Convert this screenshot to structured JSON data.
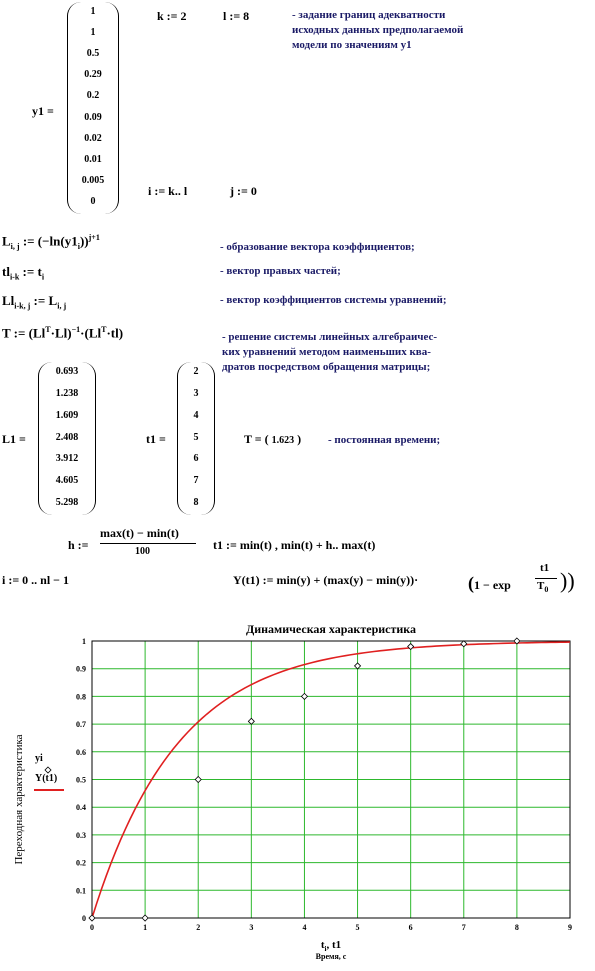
{
  "y1": {
    "label": "y1 =",
    "values": [
      "1",
      "1",
      "0.5",
      "0.29",
      "0.2",
      "0.09",
      "0.02",
      "0.01",
      "0.005",
      "0"
    ]
  },
  "params": {
    "k": "k := 2",
    "l": "l := 8",
    "i": "i := k.. l",
    "j": "j := 0"
  },
  "notes": {
    "bounds": [
      "- задание границ адекватности",
      "исходных данных предполагаемой",
      "модели по значениям y1"
    ],
    "vec_coef": "- образование вектора коэффициентов;",
    "rhs": "- вектор правых частей;",
    "sys_coef": "- вектор коэффициентов системы уравнений;",
    "solve": [
      "- решение системы линейных алгебраичес-",
      "ких уравнений методом наименьших ква-",
      "дратов посредством обращения матрицы;"
    ],
    "const": "- постоянная времени;"
  },
  "formulas": {
    "L": "L",
    "L_rhs": ":= (−ln(y1",
    "tl": "tl",
    "tl_rhs": ":= t",
    "Ll": "Ll",
    "Ll_rhs": ":= L",
    "T": "T := (Ll",
    "h": "h :=",
    "h_num": "max(t) − min(t)",
    "h_den": "100",
    "t1range": "t1 := min(t) , min(t) + h.. max(t)",
    "irange": "i := 0 .. nl − 1",
    "Y": "Y(t1) := min(y) + (max(y) − min(y))·",
    "Y_tail": "1 − exp",
    "Y_frac_num": "t1",
    "Y_frac_den": "T"
  },
  "L1": {
    "label": "L1 =",
    "values": [
      "0.693",
      "1.238",
      "1.609",
      "2.408",
      "3.912",
      "4.605",
      "5.298"
    ]
  },
  "t1vec": {
    "label": "t1 =",
    "values": [
      "2",
      "3",
      "4",
      "5",
      "6",
      "7",
      "8"
    ]
  },
  "Tresult": {
    "label": "T =",
    "value": "1.623"
  },
  "chart_data": {
    "type": "line",
    "title": "Динамическая характеристика",
    "xlabel_sym": "t",
    "xlabel_sym2": "t1",
    "xlabel": "Время, с",
    "ylabel": "Переходная характеристика",
    "xlim": [
      0,
      9
    ],
    "ylim": [
      0,
      1
    ],
    "xticks": [
      "0",
      "1",
      "2",
      "3",
      "4",
      "5",
      "6",
      "7",
      "8",
      "9"
    ],
    "yticks": [
      "0",
      "0.1",
      "0.2",
      "0.3",
      "0.4",
      "0.5",
      "0.6",
      "0.7",
      "0.8",
      "0.9",
      "1"
    ],
    "legend": [
      "y",
      "Y(t1)"
    ],
    "grid": true,
    "series": [
      {
        "name": "y",
        "kind": "points",
        "x": [
          0,
          1,
          2,
          3,
          4,
          5,
          6,
          7,
          8
        ],
        "y": [
          0,
          0,
          0.5,
          0.71,
          0.8,
          0.91,
          0.98,
          0.99,
          1.0
        ]
      },
      {
        "name": "Y(t1)",
        "kind": "curve",
        "color": "#e02020",
        "T": 1.623,
        "x_range": [
          0,
          9
        ]
      }
    ],
    "colors": {
      "grid": "#2db82d",
      "curve": "#e02020",
      "points": "#000000"
    }
  }
}
